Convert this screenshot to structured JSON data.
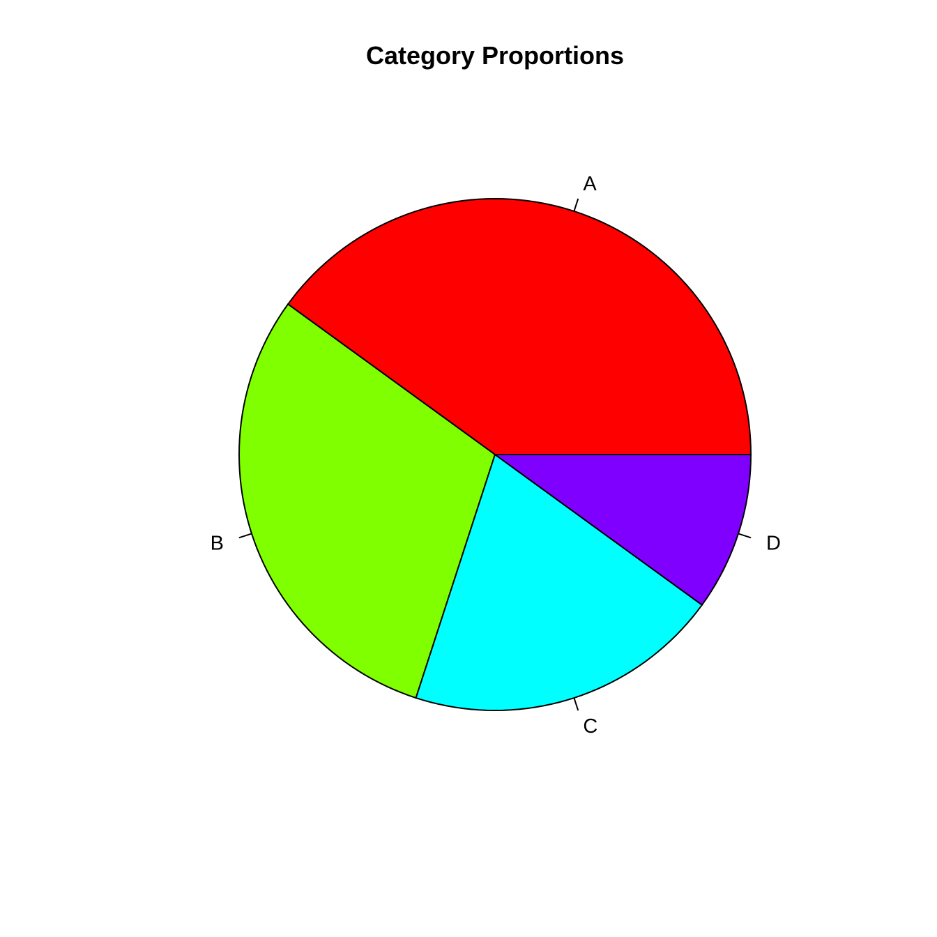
{
  "chart_data": {
    "type": "pie",
    "title": "Category Proportions",
    "categories": [
      "A",
      "B",
      "C",
      "D"
    ],
    "values": [
      40,
      30,
      20,
      10
    ],
    "colors": [
      "#FF0000",
      "#80FF00",
      "#00FFFF",
      "#8000FF"
    ],
    "start": "counter-clockwise from 3 o'clock"
  }
}
